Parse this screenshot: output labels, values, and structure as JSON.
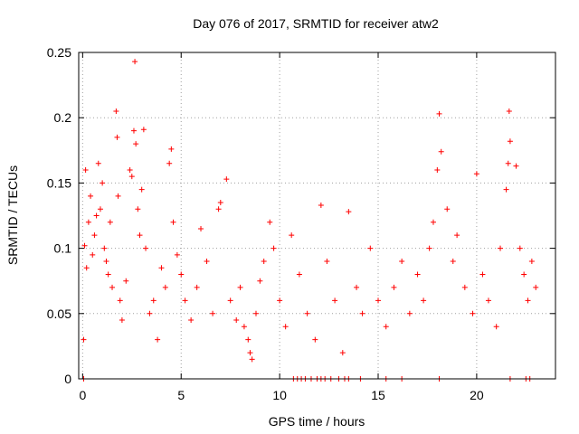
{
  "chart_data": {
    "type": "scatter",
    "title": "Day 076 of 2017, SRMTID for receiver atw2",
    "xlabel": "GPS time / hours",
    "ylabel": "SRMTID / TECUs",
    "xlim": [
      -0.2,
      24.0
    ],
    "ylim": [
      0,
      0.25
    ],
    "xticks": [
      0,
      5,
      10,
      15,
      20
    ],
    "xtick_labels": [
      "0",
      "5",
      "10",
      "15",
      "20"
    ],
    "yticks": [
      0,
      0.05,
      0.1,
      0.15,
      0.2,
      0.25
    ],
    "ytick_labels": [
      "0",
      "0.05",
      "0.1",
      "0.15",
      "0.2",
      "0.25"
    ],
    "grid": true,
    "marker": "+",
    "color": "#ff0000",
    "series": [
      {
        "name": "SRMTID",
        "points": [
          [
            0.05,
            0.03
          ],
          [
            0.1,
            0.102
          ],
          [
            0.15,
            0.16
          ],
          [
            0.2,
            0.085
          ],
          [
            0.3,
            0.12
          ],
          [
            0.4,
            0.14
          ],
          [
            0.5,
            0.095
          ],
          [
            0.6,
            0.11
          ],
          [
            0.7,
            0.125
          ],
          [
            0.8,
            0.165
          ],
          [
            0.9,
            0.13
          ],
          [
            1.0,
            0.15
          ],
          [
            1.1,
            0.1
          ],
          [
            1.2,
            0.09
          ],
          [
            1.3,
            0.08
          ],
          [
            1.4,
            0.12
          ],
          [
            1.5,
            0.07
          ],
          [
            1.7,
            0.205
          ],
          [
            1.75,
            0.185
          ],
          [
            1.8,
            0.14
          ],
          [
            1.9,
            0.06
          ],
          [
            2.0,
            0.045
          ],
          [
            2.2,
            0.075
          ],
          [
            2.4,
            0.16
          ],
          [
            2.5,
            0.155
          ],
          [
            2.6,
            0.19
          ],
          [
            2.65,
            0.243
          ],
          [
            2.7,
            0.18
          ],
          [
            2.8,
            0.13
          ],
          [
            2.9,
            0.11
          ],
          [
            3.0,
            0.145
          ],
          [
            3.1,
            0.191
          ],
          [
            3.2,
            0.1
          ],
          [
            3.4,
            0.05
          ],
          [
            3.6,
            0.06
          ],
          [
            3.8,
            0.03
          ],
          [
            4.0,
            0.085
          ],
          [
            4.2,
            0.07
          ],
          [
            4.4,
            0.165
          ],
          [
            4.5,
            0.176
          ],
          [
            4.6,
            0.12
          ],
          [
            4.8,
            0.095
          ],
          [
            5.0,
            0.08
          ],
          [
            5.2,
            0.06
          ],
          [
            5.5,
            0.045
          ],
          [
            5.8,
            0.07
          ],
          [
            6.0,
            0.115
          ],
          [
            6.3,
            0.09
          ],
          [
            6.6,
            0.05
          ],
          [
            6.9,
            0.13
          ],
          [
            7.0,
            0.135
          ],
          [
            7.3,
            0.153
          ],
          [
            7.5,
            0.06
          ],
          [
            7.8,
            0.045
          ],
          [
            8.0,
            0.07
          ],
          [
            8.2,
            0.04
          ],
          [
            8.4,
            0.03
          ],
          [
            8.5,
            0.02
          ],
          [
            8.6,
            0.015
          ],
          [
            8.8,
            0.05
          ],
          [
            9.0,
            0.075
          ],
          [
            9.2,
            0.09
          ],
          [
            9.5,
            0.12
          ],
          [
            9.7,
            0.1
          ],
          [
            10.0,
            0.06
          ],
          [
            10.3,
            0.04
          ],
          [
            10.6,
            0.11
          ],
          [
            11.0,
            0.08
          ],
          [
            11.4,
            0.05
          ],
          [
            11.8,
            0.03
          ],
          [
            12.1,
            0.133
          ],
          [
            12.4,
            0.09
          ],
          [
            12.8,
            0.06
          ],
          [
            13.2,
            0.02
          ],
          [
            13.5,
            0.128
          ],
          [
            13.9,
            0.07
          ],
          [
            14.2,
            0.05
          ],
          [
            14.6,
            0.1
          ],
          [
            15.0,
            0.06
          ],
          [
            15.4,
            0.04
          ],
          [
            15.8,
            0.07
          ],
          [
            16.2,
            0.09
          ],
          [
            16.6,
            0.05
          ],
          [
            17.0,
            0.08
          ],
          [
            17.3,
            0.06
          ],
          [
            17.6,
            0.1
          ],
          [
            17.8,
            0.12
          ],
          [
            18.0,
            0.16
          ],
          [
            18.1,
            0.203
          ],
          [
            18.2,
            0.174
          ],
          [
            18.5,
            0.13
          ],
          [
            18.8,
            0.09
          ],
          [
            19.0,
            0.11
          ],
          [
            19.4,
            0.07
          ],
          [
            19.8,
            0.05
          ],
          [
            20.0,
            0.157
          ],
          [
            20.3,
            0.08
          ],
          [
            20.6,
            0.06
          ],
          [
            21.0,
            0.04
          ],
          [
            21.2,
            0.1
          ],
          [
            21.5,
            0.145
          ],
          [
            21.6,
            0.165
          ],
          [
            21.65,
            0.205
          ],
          [
            21.7,
            0.182
          ],
          [
            22.0,
            0.163
          ],
          [
            22.2,
            0.1
          ],
          [
            22.4,
            0.08
          ],
          [
            22.6,
            0.06
          ],
          [
            22.8,
            0.09
          ],
          [
            23.0,
            0.07
          ],
          [
            0.05,
            0.0
          ],
          [
            10.7,
            0.0
          ],
          [
            10.9,
            0.0
          ],
          [
            11.1,
            0.0
          ],
          [
            11.3,
            0.0
          ],
          [
            11.6,
            0.0
          ],
          [
            11.9,
            0.0
          ],
          [
            12.1,
            0.0
          ],
          [
            12.3,
            0.0
          ],
          [
            12.6,
            0.0
          ],
          [
            13.0,
            0.0
          ],
          [
            13.3,
            0.0
          ],
          [
            13.5,
            0.0
          ],
          [
            14.1,
            0.0
          ],
          [
            15.4,
            0.0
          ],
          [
            16.2,
            0.0
          ],
          [
            18.1,
            0.0
          ],
          [
            21.7,
            0.0
          ],
          [
            22.5,
            0.0
          ],
          [
            22.7,
            0.0
          ]
        ]
      }
    ]
  }
}
